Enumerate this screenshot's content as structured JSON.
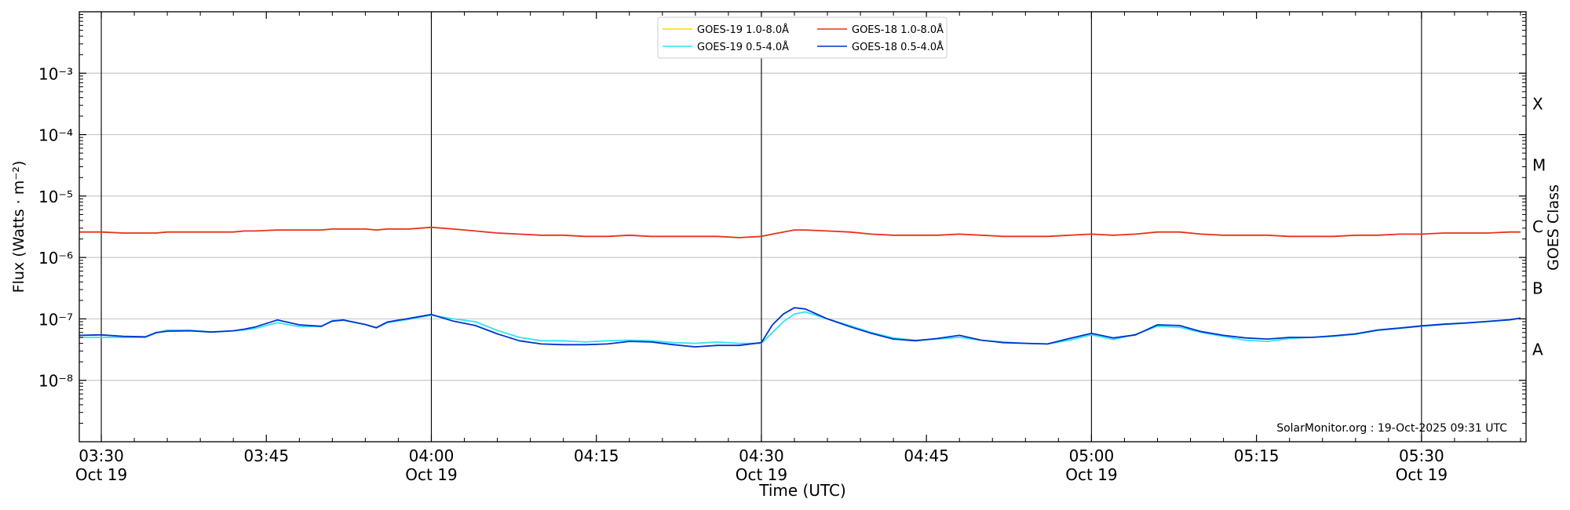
{
  "chart_data": {
    "type": "line",
    "title": "",
    "xlabel": "Time (UTC)",
    "ylabel": "Flux (Watts · m⁻²)",
    "ylabel_right": "GOES Class",
    "yscale": "log",
    "ylim": [
      1e-09,
      0.01
    ],
    "xlim_minutes": [
      28,
      159.5
    ],
    "x_ticks": [
      {
        "t": 30,
        "label": "03:30",
        "date": "Oct 19"
      },
      {
        "t": 45,
        "label": "03:45",
        "date": ""
      },
      {
        "t": 60,
        "label": "04:00",
        "date": "Oct 19"
      },
      {
        "t": 75,
        "label": "04:15",
        "date": ""
      },
      {
        "t": 90,
        "label": "04:30",
        "date": "Oct 19"
      },
      {
        "t": 105,
        "label": "04:45",
        "date": ""
      },
      {
        "t": 120,
        "label": "05:00",
        "date": "Oct 19"
      },
      {
        "t": 135,
        "label": "05:15",
        "date": ""
      },
      {
        "t": 150,
        "label": "05:30",
        "date": "Oct 19"
      }
    ],
    "y_ticks": [
      {
        "exp": -8,
        "label": "10⁻⁸"
      },
      {
        "exp": -7,
        "label": "10⁻⁷"
      },
      {
        "exp": -6,
        "label": "10⁻⁶"
      },
      {
        "exp": -5,
        "label": "10⁻⁵"
      },
      {
        "exp": -4,
        "label": "10⁻⁴"
      },
      {
        "exp": -3,
        "label": "10⁻³"
      }
    ],
    "goes_classes": [
      {
        "label": "A",
        "center_exp": -7.5
      },
      {
        "label": "B",
        "center_exp": -6.5
      },
      {
        "label": "C",
        "center_exp": -5.5
      },
      {
        "label": "M",
        "center_exp": -4.5
      },
      {
        "label": "X",
        "center_exp": -3.5
      }
    ],
    "vertical_lines": [
      30,
      60,
      90,
      120,
      150
    ],
    "grid": "horizontal",
    "legend_position": "top-center",
    "annotation": "SolarMonitor.org : 19-Oct-2025 09:31 UTC",
    "x": [
      "03:28",
      "03:30",
      "03:32",
      "03:34",
      "03:35",
      "03:36",
      "03:38",
      "03:40",
      "03:42",
      "03:43",
      "03:44",
      "03:46",
      "03:48",
      "03:50",
      "03:51",
      "03:52",
      "03:54",
      "03:55",
      "03:56",
      "03:58",
      "04:00",
      "04:02",
      "04:04",
      "04:06",
      "04:08",
      "04:10",
      "04:12",
      "04:14",
      "04:16",
      "04:18",
      "04:20",
      "04:22",
      "04:24",
      "04:26",
      "04:28",
      "04:30",
      "04:31",
      "04:32",
      "04:33",
      "04:34",
      "04:36",
      "04:38",
      "04:40",
      "04:42",
      "04:44",
      "04:46",
      "04:48",
      "04:50",
      "04:52",
      "04:54",
      "04:56",
      "04:58",
      "05:00",
      "05:02",
      "05:04",
      "05:06",
      "05:08",
      "05:10",
      "05:12",
      "05:14",
      "05:16",
      "05:18",
      "05:20",
      "05:22",
      "05:24",
      "05:26",
      "05:28",
      "05:30",
      "05:32",
      "05:34",
      "05:36",
      "05:38",
      "05:39"
    ],
    "series": [
      {
        "name": "GOES-19 1.0-8.0Å",
        "color": "#ffd700",
        "visible": false,
        "values": [
          2.6e-06,
          2.6e-06,
          2.5e-06,
          2.5e-06,
          2.5e-06,
          2.6e-06,
          2.6e-06,
          2.6e-06,
          2.6e-06,
          2.7e-06,
          2.7e-06,
          2.8e-06,
          2.8e-06,
          2.8e-06,
          2.9e-06,
          2.9e-06,
          2.9e-06,
          2.8e-06,
          2.9e-06,
          2.9e-06,
          3.1e-06,
          2.9e-06,
          2.7e-06,
          2.5e-06,
          2.4e-06,
          2.3e-06,
          2.3e-06,
          2.2e-06,
          2.2e-06,
          2.3e-06,
          2.2e-06,
          2.2e-06,
          2.2e-06,
          2.2e-06,
          2.1e-06,
          2.2e-06,
          2.4e-06,
          2.6e-06,
          2.8e-06,
          2.8e-06,
          2.7e-06,
          2.6e-06,
          2.4e-06,
          2.3e-06,
          2.3e-06,
          2.3e-06,
          2.4e-06,
          2.3e-06,
          2.2e-06,
          2.2e-06,
          2.2e-06,
          2.3e-06,
          2.4e-06,
          2.3e-06,
          2.4e-06,
          2.6e-06,
          2.6e-06,
          2.4e-06,
          2.3e-06,
          2.3e-06,
          2.3e-06,
          2.2e-06,
          2.2e-06,
          2.2e-06,
          2.3e-06,
          2.3e-06,
          2.4e-06,
          2.4e-06,
          2.5e-06,
          2.5e-06,
          2.5e-06,
          2.6e-06,
          2.6e-06
        ]
      },
      {
        "name": "GOES-18 1.0-8.0Å",
        "color": "#e8311a",
        "visible": true,
        "values": [
          2.6e-06,
          2.6e-06,
          2.5e-06,
          2.5e-06,
          2.5e-06,
          2.6e-06,
          2.6e-06,
          2.6e-06,
          2.6e-06,
          2.7e-06,
          2.7e-06,
          2.8e-06,
          2.8e-06,
          2.8e-06,
          2.9e-06,
          2.9e-06,
          2.9e-06,
          2.8e-06,
          2.9e-06,
          2.9e-06,
          3.1e-06,
          2.9e-06,
          2.7e-06,
          2.5e-06,
          2.4e-06,
          2.3e-06,
          2.3e-06,
          2.2e-06,
          2.2e-06,
          2.3e-06,
          2.2e-06,
          2.2e-06,
          2.2e-06,
          2.2e-06,
          2.1e-06,
          2.2e-06,
          2.4e-06,
          2.6e-06,
          2.8e-06,
          2.8e-06,
          2.7e-06,
          2.6e-06,
          2.4e-06,
          2.3e-06,
          2.3e-06,
          2.3e-06,
          2.4e-06,
          2.3e-06,
          2.2e-06,
          2.2e-06,
          2.2e-06,
          2.3e-06,
          2.4e-06,
          2.3e-06,
          2.4e-06,
          2.6e-06,
          2.6e-06,
          2.4e-06,
          2.3e-06,
          2.3e-06,
          2.3e-06,
          2.2e-06,
          2.2e-06,
          2.2e-06,
          2.3e-06,
          2.3e-06,
          2.4e-06,
          2.4e-06,
          2.5e-06,
          2.5e-06,
          2.5e-06,
          2.6e-06,
          2.6e-06
        ]
      },
      {
        "name": "GOES-19 0.5-4.0Å",
        "color": "#2fe4f5",
        "visible": true,
        "values": [
          5e-08,
          5e-08,
          5e-08,
          5e-08,
          5.9e-08,
          6.6e-08,
          6.6e-08,
          6.1e-08,
          6.4e-08,
          6.6e-08,
          7e-08,
          8.7e-08,
          7.5e-08,
          7.5e-08,
          9.4e-08,
          9.5e-08,
          8.1e-08,
          7.1e-08,
          8.7e-08,
          9.9e-08,
          1.15e-07,
          1e-07,
          9e-08,
          6.5e-08,
          5e-08,
          4.4e-08,
          4.4e-08,
          4.2e-08,
          4.4e-08,
          4.5e-08,
          4.4e-08,
          4.1e-08,
          4e-08,
          4.2e-08,
          4e-08,
          4e-08,
          6e-08,
          9e-08,
          1.2e-07,
          1.3e-07,
          1e-07,
          7.8e-08,
          6e-08,
          4.9e-08,
          4.5e-08,
          4.7e-08,
          5e-08,
          4.5e-08,
          4.2e-08,
          4e-08,
          3.9e-08,
          4.5e-08,
          5.5e-08,
          4.6e-08,
          5.6e-08,
          7.6e-08,
          7.3e-08,
          6e-08,
          5.2e-08,
          4.5e-08,
          4.3e-08,
          4.8e-08,
          5e-08,
          5.2e-08,
          5.6e-08,
          6.5e-08,
          7e-08,
          7.6e-08,
          8.1e-08,
          8.5e-08,
          9e-08,
          9.6e-08,
          1.02e-07
        ]
      },
      {
        "name": "GOES-18 0.5-4.0Å",
        "color": "#0033cc",
        "visible": true,
        "values": [
          5.4e-08,
          5.5e-08,
          5.2e-08,
          5.1e-08,
          6e-08,
          6.3e-08,
          6.4e-08,
          6.1e-08,
          6.4e-08,
          6.8e-08,
          7.4e-08,
          9.6e-08,
          8e-08,
          7.6e-08,
          9.2e-08,
          9.6e-08,
          8.1e-08,
          7.2e-08,
          8.9e-08,
          1.02e-07,
          1.18e-07,
          9.2e-08,
          7.8e-08,
          5.7e-08,
          4.4e-08,
          3.9e-08,
          3.8e-08,
          3.8e-08,
          3.9e-08,
          4.3e-08,
          4.2e-08,
          3.8e-08,
          3.5e-08,
          3.7e-08,
          3.7e-08,
          4.1e-08,
          8e-08,
          1.2e-07,
          1.52e-07,
          1.45e-07,
          1e-07,
          7.5e-08,
          5.8e-08,
          4.7e-08,
          4.4e-08,
          4.8e-08,
          5.4e-08,
          4.5e-08,
          4.1e-08,
          4e-08,
          3.9e-08,
          4.8e-08,
          5.8e-08,
          4.9e-08,
          5.5e-08,
          8e-08,
          7.8e-08,
          6.2e-08,
          5.4e-08,
          4.9e-08,
          4.7e-08,
          5e-08,
          5e-08,
          5.3e-08,
          5.7e-08,
          6.6e-08,
          7.1e-08,
          7.7e-08,
          8.2e-08,
          8.6e-08,
          9.1e-08,
          9.7e-08,
          1.03e-07
        ]
      }
    ]
  }
}
